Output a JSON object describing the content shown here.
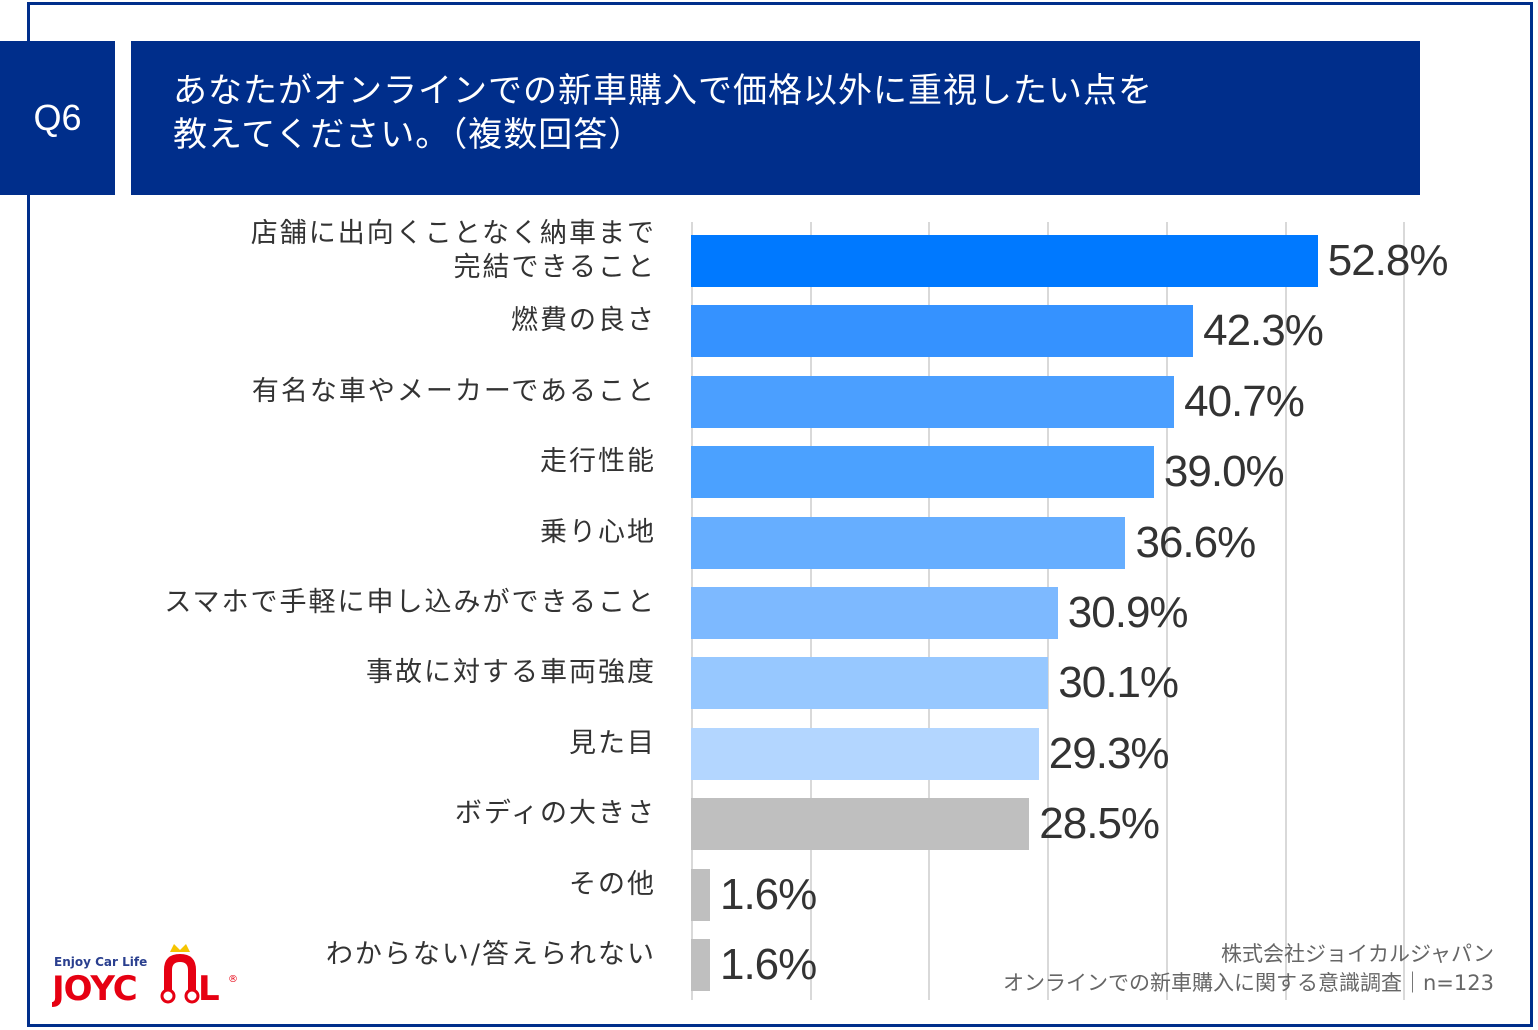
{
  "header": {
    "question_number": "Q6",
    "title_line1": "あなたがオンラインでの新車購入で価格以外に重視したい点を",
    "title_line2": "教えてください。（複数回答）"
  },
  "source": {
    "company": "株式会社ジョイカルジャパン",
    "survey": "オンラインでの新車購入に関する意識調査｜n=123"
  },
  "logo": {
    "tagline": "Enjoy Car Life",
    "brand": "JOYCAL",
    "registered": "®"
  },
  "colors": {
    "frame": "#002E8B",
    "grid": "#D9D9D9",
    "text": "#333333",
    "logo_red": "#E60012",
    "logo_blue": "#2A3F8F",
    "logo_crown": "#F5C400"
  },
  "chart_data": {
    "type": "bar",
    "orientation": "horizontal",
    "title": "あなたがオンラインでの新車購入で価格以外に重視したい点を教えてください。（複数回答）",
    "xlabel": "",
    "ylabel": "",
    "xlim": [
      0,
      60
    ],
    "grid": true,
    "grid_step": 10,
    "legend": null,
    "unit": "%",
    "categories": [
      "店舗に出向くことなく納車まで完結できること",
      "燃費の良さ",
      "有名な車やメーカーであること",
      "走行性能",
      "乗り心地",
      "スマホで手軽に申し込みができること",
      "事故に対する車両強度",
      "見た目",
      "ボディの大きさ",
      "その他",
      "わからない/答えられない"
    ],
    "label_lines": [
      [
        "店舗に出向くことなく納車まで",
        "完結できること"
      ],
      [
        "燃費の良さ"
      ],
      [
        "有名な車やメーカーであること"
      ],
      [
        "走行性能"
      ],
      [
        "乗り心地"
      ],
      [
        "スマホで手軽に申し込みができること"
      ],
      [
        "事故に対する車両強度"
      ],
      [
        "見た目"
      ],
      [
        "ボディの大きさ"
      ],
      [
        "その他"
      ],
      [
        "わからない/答えられない"
      ]
    ],
    "values": [
      52.8,
      42.3,
      40.7,
      39.0,
      36.6,
      30.9,
      30.1,
      29.3,
      28.5,
      1.6,
      1.6
    ],
    "value_labels": [
      "52.8%",
      "42.3%",
      "40.7%",
      "39.0%",
      "36.6%",
      "30.9%",
      "30.1%",
      "29.3%",
      "28.5%",
      "1.6%",
      "1.6%"
    ],
    "bar_colors": [
      "#0079FF",
      "#3592FF",
      "#4B9FFF",
      "#4BA1FF",
      "#66AEFF",
      "#7DB9FF",
      "#97C8FF",
      "#B3D6FF",
      "#BFBFBF",
      "#BFBFBF",
      "#BFBFBF"
    ],
    "sample_size": "n=123"
  }
}
